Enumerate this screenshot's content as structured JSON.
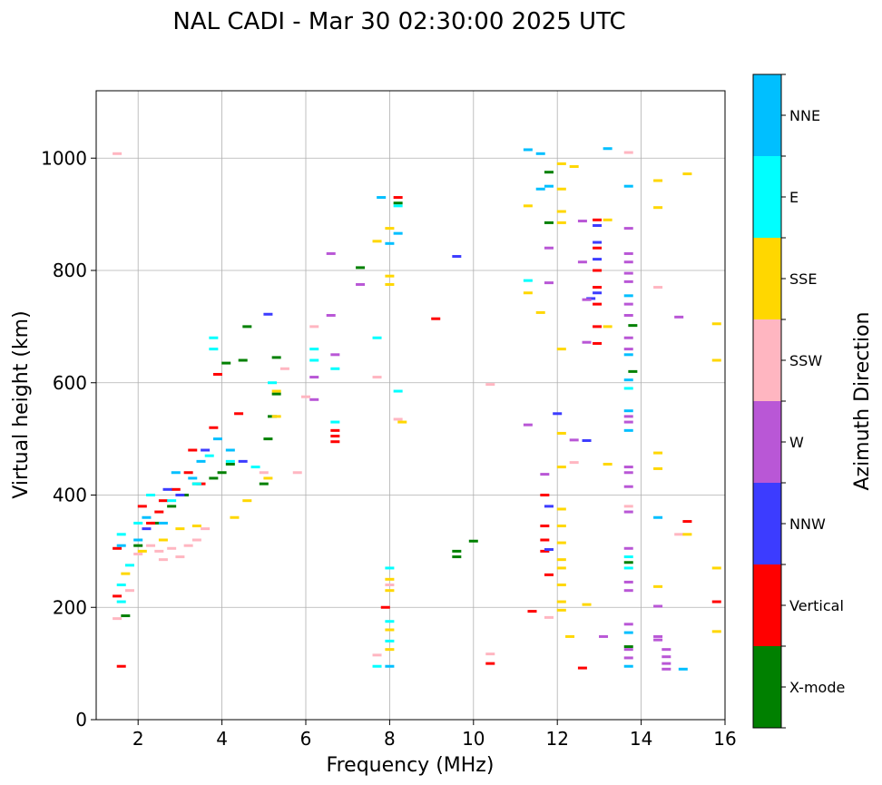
{
  "chart_data": {
    "type": "scatter",
    "title": "NAL CADI - Mar 30 02:30:00 2025 UTC",
    "xlabel": "Frequency (MHz)",
    "ylabel": "Virtual height (km)",
    "xlim": [
      1.0,
      16.0
    ],
    "ylim": [
      0,
      1120
    ],
    "xticks": [
      "2",
      "4",
      "6",
      "8",
      "10",
      "12",
      "14",
      "16"
    ],
    "yticks": [
      "0",
      "200",
      "400",
      "600",
      "800",
      "1000"
    ],
    "grid": true,
    "colorbar": {
      "label": "Azimuth Direction",
      "categories": [
        {
          "name": "X-mode",
          "color": "#008000"
        },
        {
          "name": "Vertical",
          "color": "#ff0000"
        },
        {
          "name": "NNW",
          "color": "#3c3cff"
        },
        {
          "name": "W",
          "color": "#b957d6"
        },
        {
          "name": "SSW",
          "color": "#ffb6c1"
        },
        {
          "name": "SSE",
          "color": "#ffd700"
        },
        {
          "name": "E",
          "color": "#00ffff"
        },
        {
          "name": "NNE",
          "color": "#00bfff"
        }
      ]
    },
    "series": [
      {
        "name": "X-mode",
        "points": [
          [
            1.7,
            185
          ],
          [
            2.0,
            310
          ],
          [
            2.4,
            350
          ],
          [
            2.8,
            380
          ],
          [
            3.1,
            400
          ],
          [
            3.4,
            420
          ],
          [
            3.8,
            430
          ],
          [
            4.0,
            440
          ],
          [
            4.2,
            455
          ],
          [
            4.1,
            635
          ],
          [
            4.5,
            640
          ],
          [
            4.6,
            700
          ],
          [
            5.0,
            420
          ],
          [
            5.1,
            500
          ],
          [
            5.2,
            540
          ],
          [
            5.3,
            580
          ],
          [
            5.3,
            645
          ],
          [
            7.3,
            805
          ],
          [
            8.2,
            920
          ],
          [
            9.6,
            300
          ],
          [
            9.6,
            290
          ],
          [
            10.0,
            318
          ],
          [
            11.8,
            885
          ],
          [
            11.8,
            975
          ],
          [
            13.8,
            702
          ],
          [
            13.8,
            620
          ],
          [
            13.7,
            280
          ],
          [
            13.7,
            130
          ]
        ]
      },
      {
        "name": "Vertical",
        "points": [
          [
            1.5,
            305
          ],
          [
            1.5,
            220
          ],
          [
            1.6,
            95
          ],
          [
            2.1,
            380
          ],
          [
            2.3,
            350
          ],
          [
            2.5,
            370
          ],
          [
            2.6,
            390
          ],
          [
            2.9,
            410
          ],
          [
            3.2,
            440
          ],
          [
            3.3,
            480
          ],
          [
            3.5,
            420
          ],
          [
            3.8,
            520
          ],
          [
            3.9,
            615
          ],
          [
            4.4,
            545
          ],
          [
            6.7,
            495
          ],
          [
            6.7,
            505
          ],
          [
            6.7,
            515
          ],
          [
            7.9,
            200
          ],
          [
            8.2,
            930
          ],
          [
            9.1,
            714
          ],
          [
            10.4,
            100
          ],
          [
            11.4,
            193
          ],
          [
            11.7,
            400
          ],
          [
            11.7,
            345
          ],
          [
            11.7,
            320
          ],
          [
            11.7,
            300
          ],
          [
            11.8,
            258
          ],
          [
            12.6,
            92
          ],
          [
            12.95,
            670
          ],
          [
            12.95,
            700
          ],
          [
            12.95,
            740
          ],
          [
            12.95,
            770
          ],
          [
            12.95,
            800
          ],
          [
            12.95,
            840
          ],
          [
            12.95,
            890
          ],
          [
            15.1,
            353
          ],
          [
            15.8,
            210
          ]
        ]
      },
      {
        "name": "NNW",
        "points": [
          [
            2.2,
            340
          ],
          [
            2.7,
            410
          ],
          [
            3.0,
            400
          ],
          [
            3.6,
            480
          ],
          [
            4.5,
            460
          ],
          [
            5.1,
            722
          ],
          [
            9.6,
            825
          ],
          [
            11.8,
            380
          ],
          [
            11.8,
            303
          ],
          [
            12.0,
            545
          ],
          [
            12.7,
            497
          ],
          [
            12.8,
            750
          ],
          [
            12.95,
            760
          ],
          [
            12.95,
            820
          ],
          [
            12.95,
            850
          ],
          [
            12.95,
            880
          ]
        ]
      },
      {
        "name": "W",
        "points": [
          [
            6.2,
            570
          ],
          [
            6.2,
            610
          ],
          [
            6.6,
            830
          ],
          [
            6.6,
            720
          ],
          [
            6.7,
            650
          ],
          [
            7.3,
            775
          ],
          [
            11.3,
            525
          ],
          [
            11.7,
            437
          ],
          [
            11.8,
            840
          ],
          [
            11.8,
            778
          ],
          [
            12.4,
            498
          ],
          [
            12.6,
            815
          ],
          [
            12.6,
            888
          ],
          [
            12.7,
            748
          ],
          [
            12.7,
            672
          ],
          [
            13.1,
            148
          ],
          [
            13.7,
            875
          ],
          [
            13.7,
            830
          ],
          [
            13.7,
            815
          ],
          [
            13.7,
            795
          ],
          [
            13.7,
            780
          ],
          [
            13.7,
            740
          ],
          [
            13.7,
            720
          ],
          [
            13.7,
            680
          ],
          [
            13.7,
            660
          ],
          [
            13.7,
            540
          ],
          [
            13.7,
            530
          ],
          [
            13.7,
            450
          ],
          [
            13.7,
            440
          ],
          [
            13.7,
            415
          ],
          [
            13.7,
            370
          ],
          [
            13.7,
            305
          ],
          [
            13.7,
            245
          ],
          [
            13.7,
            230
          ],
          [
            13.7,
            170
          ],
          [
            13.7,
            125
          ],
          [
            13.7,
            110
          ],
          [
            14.4,
            202
          ],
          [
            14.4,
            148
          ],
          [
            14.4,
            142
          ],
          [
            14.6,
            125
          ],
          [
            14.6,
            112
          ],
          [
            14.6,
            100
          ],
          [
            14.6,
            90
          ],
          [
            14.9,
            717
          ]
        ]
      },
      {
        "name": "SSW",
        "points": [
          [
            1.5,
            1008
          ],
          [
            1.5,
            180
          ],
          [
            1.8,
            230
          ],
          [
            2.0,
            295
          ],
          [
            2.3,
            310
          ],
          [
            2.5,
            300
          ],
          [
            2.6,
            285
          ],
          [
            2.8,
            305
          ],
          [
            3.0,
            290
          ],
          [
            3.2,
            310
          ],
          [
            3.4,
            320
          ],
          [
            3.6,
            340
          ],
          [
            5.0,
            440
          ],
          [
            5.5,
            625
          ],
          [
            5.8,
            440
          ],
          [
            6.0,
            575
          ],
          [
            6.2,
            700
          ],
          [
            7.7,
            610
          ],
          [
            7.7,
            115
          ],
          [
            8.0,
            240
          ],
          [
            8.2,
            535
          ],
          [
            10.4,
            597
          ],
          [
            10.4,
            117
          ],
          [
            11.8,
            182
          ],
          [
            12.4,
            458
          ],
          [
            13.7,
            1010
          ],
          [
            13.7,
            380
          ],
          [
            14.4,
            770
          ],
          [
            14.9,
            330
          ]
        ]
      },
      {
        "name": "SSE",
        "points": [
          [
            1.7,
            260
          ],
          [
            2.1,
            300
          ],
          [
            2.6,
            320
          ],
          [
            3.0,
            340
          ],
          [
            3.4,
            345
          ],
          [
            4.3,
            360
          ],
          [
            4.6,
            390
          ],
          [
            5.1,
            430
          ],
          [
            5.3,
            540
          ],
          [
            5.3,
            585
          ],
          [
            7.7,
            852
          ],
          [
            8.0,
            875
          ],
          [
            8.0,
            790
          ],
          [
            8.0,
            775
          ],
          [
            8.0,
            250
          ],
          [
            8.0,
            230
          ],
          [
            8.0,
            160
          ],
          [
            8.0,
            125
          ],
          [
            8.3,
            530
          ],
          [
            11.3,
            915
          ],
          [
            11.3,
            760
          ],
          [
            11.6,
            725
          ],
          [
            12.1,
            990
          ],
          [
            12.1,
            945
          ],
          [
            12.1,
            905
          ],
          [
            12.1,
            885
          ],
          [
            12.1,
            660
          ],
          [
            12.1,
            510
          ],
          [
            12.1,
            450
          ],
          [
            12.1,
            375
          ],
          [
            12.1,
            345
          ],
          [
            12.1,
            315
          ],
          [
            12.1,
            285
          ],
          [
            12.1,
            270
          ],
          [
            12.1,
            240
          ],
          [
            12.1,
            210
          ],
          [
            12.1,
            195
          ],
          [
            12.3,
            148
          ],
          [
            12.4,
            985
          ],
          [
            12.7,
            205
          ],
          [
            13.2,
            890
          ],
          [
            13.2,
            700
          ],
          [
            13.2,
            455
          ],
          [
            14.4,
            960
          ],
          [
            14.4,
            912
          ],
          [
            14.4,
            475
          ],
          [
            14.4,
            447
          ],
          [
            14.4,
            237
          ],
          [
            15.1,
            972
          ],
          [
            15.1,
            330
          ],
          [
            15.8,
            705
          ],
          [
            15.8,
            640
          ],
          [
            15.8,
            270
          ],
          [
            15.8,
            157
          ]
        ]
      },
      {
        "name": "E",
        "points": [
          [
            1.6,
            330
          ],
          [
            1.6,
            240
          ],
          [
            1.6,
            210
          ],
          [
            1.8,
            275
          ],
          [
            2.0,
            350
          ],
          [
            2.3,
            400
          ],
          [
            2.8,
            390
          ],
          [
            3.4,
            420
          ],
          [
            3.7,
            470
          ],
          [
            3.8,
            680
          ],
          [
            3.8,
            660
          ],
          [
            4.2,
            460
          ],
          [
            4.8,
            450
          ],
          [
            5.2,
            600
          ],
          [
            6.2,
            660
          ],
          [
            6.2,
            640
          ],
          [
            6.7,
            625
          ],
          [
            6.7,
            530
          ],
          [
            7.7,
            680
          ],
          [
            7.7,
            95
          ],
          [
            8.0,
            270
          ],
          [
            8.0,
            175
          ],
          [
            8.0,
            140
          ],
          [
            8.2,
            915
          ],
          [
            8.2,
            585
          ],
          [
            11.3,
            782
          ],
          [
            13.7,
            590
          ],
          [
            13.7,
            290
          ],
          [
            13.7,
            270
          ]
        ]
      },
      {
        "name": "NNE",
        "points": [
          [
            1.6,
            310
          ],
          [
            2.0,
            320
          ],
          [
            2.2,
            360
          ],
          [
            2.6,
            350
          ],
          [
            2.9,
            440
          ],
          [
            3.3,
            430
          ],
          [
            3.5,
            460
          ],
          [
            3.9,
            500
          ],
          [
            4.2,
            480
          ],
          [
            7.8,
            930
          ],
          [
            8.0,
            95
          ],
          [
            8.0,
            848
          ],
          [
            8.2,
            866
          ],
          [
            11.3,
            1015
          ],
          [
            11.6,
            1008
          ],
          [
            11.6,
            945
          ],
          [
            11.8,
            950
          ],
          [
            13.2,
            1017
          ],
          [
            13.7,
            950
          ],
          [
            13.7,
            755
          ],
          [
            13.7,
            650
          ],
          [
            13.7,
            605
          ],
          [
            13.7,
            550
          ],
          [
            13.7,
            515
          ],
          [
            13.7,
            155
          ],
          [
            13.7,
            95
          ],
          [
            14.4,
            360
          ],
          [
            15.0,
            90
          ]
        ]
      }
    ]
  }
}
